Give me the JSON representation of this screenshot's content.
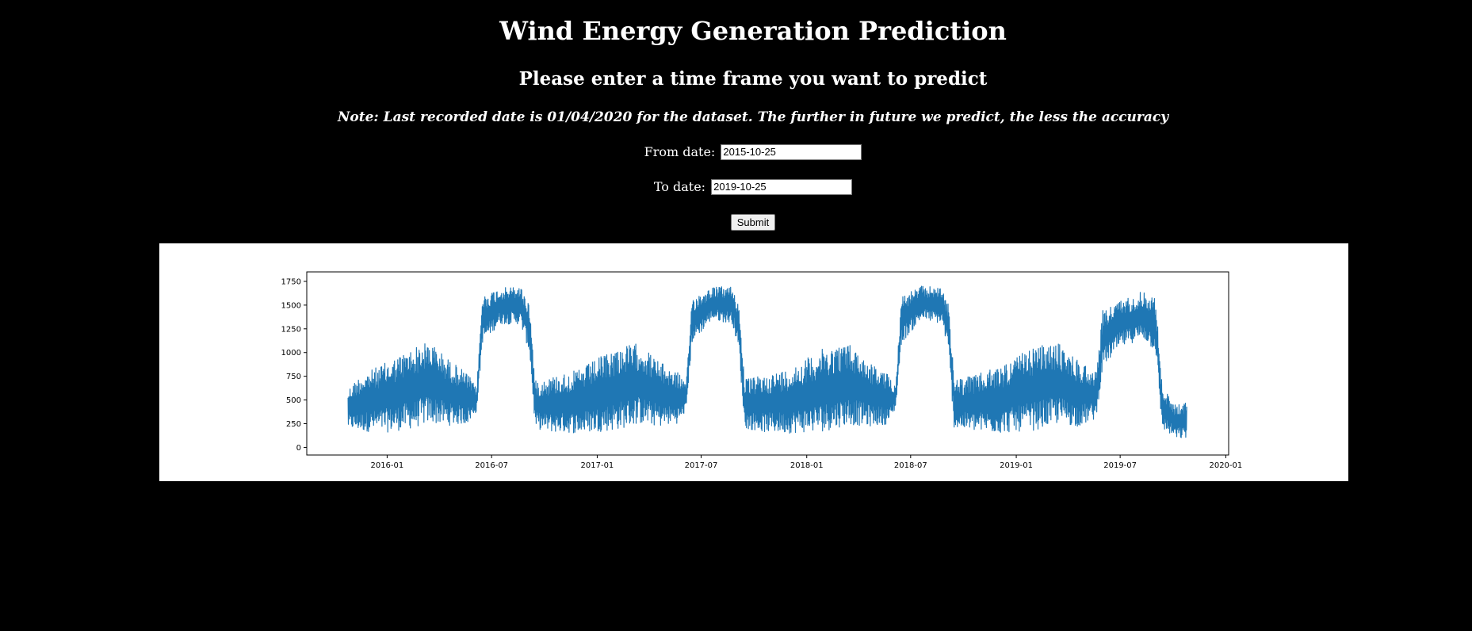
{
  "header": {
    "title": "Wind Energy Generation Prediction",
    "subtitle": "Please enter a time frame you want to predict",
    "note": "Note: Last recorded date is 01/04/2020 for the dataset. The further in future we predict, the less the accuracy"
  },
  "form": {
    "from_label": "From date:",
    "from_value": "2015-10-25",
    "to_label": "To date:",
    "to_value": "2019-10-25",
    "submit_label": "Submit"
  },
  "colors": {
    "background": "#000000",
    "text": "#ffffff",
    "series": "#1f77b4"
  },
  "chart_data": {
    "type": "line",
    "title": "",
    "xlabel": "",
    "ylabel": "",
    "x_range": [
      "2015-10-25",
      "2019-10-25"
    ],
    "xlim": [
      "2015-08-14",
      "2020-01-06"
    ],
    "ylim": [
      -80,
      1850
    ],
    "x_ticks": [
      "2016-01",
      "2016-07",
      "2017-01",
      "2017-07",
      "2018-01",
      "2018-07",
      "2019-01",
      "2019-07",
      "2020-01"
    ],
    "y_ticks": [
      0,
      250,
      500,
      750,
      1000,
      1250,
      1500,
      1750
    ],
    "grid": false,
    "legend": "none",
    "series": [
      {
        "envelope": [
          {
            "x": "2015-10-25",
            "low": 200,
            "high": 620
          },
          {
            "x": "2015-11-15",
            "low": 170,
            "high": 760
          },
          {
            "x": "2016-01-01",
            "low": 160,
            "high": 900
          },
          {
            "x": "2016-02-15",
            "low": 200,
            "high": 1050
          },
          {
            "x": "2016-03-15",
            "low": 260,
            "high": 1120
          },
          {
            "x": "2016-04-15",
            "low": 230,
            "high": 940
          },
          {
            "x": "2016-05-20",
            "low": 250,
            "high": 780
          },
          {
            "x": "2016-06-05",
            "low": 380,
            "high": 620
          },
          {
            "x": "2016-06-15",
            "low": 1100,
            "high": 1600
          },
          {
            "x": "2016-07-15",
            "low": 1300,
            "high": 1680
          },
          {
            "x": "2016-08-20",
            "low": 1300,
            "high": 1700
          },
          {
            "x": "2016-09-05",
            "low": 1000,
            "high": 1520
          },
          {
            "x": "2016-09-15",
            "low": 200,
            "high": 700
          },
          {
            "x": "2016-10-15",
            "low": 160,
            "high": 750
          },
          {
            "x": "2016-12-01",
            "low": 150,
            "high": 820
          },
          {
            "x": "2017-02-01",
            "low": 180,
            "high": 1050
          },
          {
            "x": "2017-03-15",
            "low": 250,
            "high": 1100
          },
          {
            "x": "2017-04-20",
            "low": 220,
            "high": 900
          },
          {
            "x": "2017-05-25",
            "low": 260,
            "high": 780
          },
          {
            "x": "2017-06-05",
            "low": 400,
            "high": 650
          },
          {
            "x": "2017-06-15",
            "low": 1100,
            "high": 1580
          },
          {
            "x": "2017-07-20",
            "low": 1350,
            "high": 1690
          },
          {
            "x": "2017-08-25",
            "low": 1300,
            "high": 1700
          },
          {
            "x": "2017-09-05",
            "low": 1000,
            "high": 1500
          },
          {
            "x": "2017-09-15",
            "low": 200,
            "high": 720
          },
          {
            "x": "2017-10-20",
            "low": 160,
            "high": 760
          },
          {
            "x": "2017-12-01",
            "low": 150,
            "high": 830
          },
          {
            "x": "2018-02-01",
            "low": 170,
            "high": 1050
          },
          {
            "x": "2018-03-15",
            "low": 240,
            "high": 1100
          },
          {
            "x": "2018-04-20",
            "low": 220,
            "high": 900
          },
          {
            "x": "2018-05-25",
            "low": 250,
            "high": 760
          },
          {
            "x": "2018-06-05",
            "low": 420,
            "high": 650
          },
          {
            "x": "2018-06-15",
            "low": 1100,
            "high": 1600
          },
          {
            "x": "2018-07-20",
            "low": 1350,
            "high": 1700
          },
          {
            "x": "2018-08-25",
            "low": 1300,
            "high": 1690
          },
          {
            "x": "2018-09-05",
            "low": 1000,
            "high": 1500
          },
          {
            "x": "2018-09-15",
            "low": 200,
            "high": 720
          },
          {
            "x": "2018-10-20",
            "low": 170,
            "high": 760
          },
          {
            "x": "2018-12-01",
            "low": 150,
            "high": 850
          },
          {
            "x": "2019-02-01",
            "low": 180,
            "high": 1060
          },
          {
            "x": "2019-03-15",
            "low": 250,
            "high": 1100
          },
          {
            "x": "2019-04-20",
            "low": 220,
            "high": 920
          },
          {
            "x": "2019-05-20",
            "low": 300,
            "high": 800
          },
          {
            "x": "2019-06-01",
            "low": 850,
            "high": 1450
          },
          {
            "x": "2019-07-01",
            "low": 1050,
            "high": 1550
          },
          {
            "x": "2019-08-10",
            "low": 1150,
            "high": 1650
          },
          {
            "x": "2019-09-01",
            "low": 1000,
            "high": 1580
          },
          {
            "x": "2019-09-12",
            "low": 200,
            "high": 650
          },
          {
            "x": "2019-10-05",
            "low": 90,
            "high": 450
          },
          {
            "x": "2019-10-25",
            "low": 90,
            "high": 480
          }
        ]
      }
    ]
  }
}
